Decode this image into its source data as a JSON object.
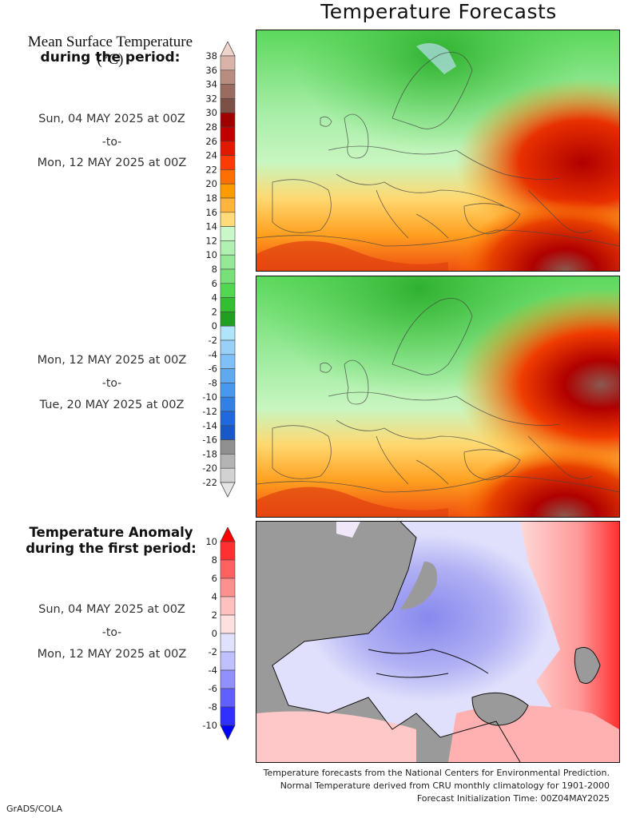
{
  "page": {
    "title": "Temperature Forecasts",
    "footer_lines": [
      "Temperature forecasts from the National Centers for Environmental Prediction.",
      "Normal Temperature derived from CRU monthly climatology for 1901-2000",
      "Forecast Initialization Time: 00Z04MAY2025"
    ],
    "credit": "GrADS/COLA"
  },
  "labels": {
    "mean_title_line1": "Mean Surface Temperature (°C)",
    "mean_title_line2": "during the period:",
    "period1_start": "Sun, 04 MAY 2025 at 00Z",
    "period1_sep": "-to-",
    "period1_end": "Mon, 12 MAY 2025 at 00Z",
    "period2_start": "Mon, 12 MAY 2025 at 00Z",
    "period2_sep": "-to-",
    "period2_end": "Tue, 20 MAY 2025 at 00Z",
    "anom_title_line1": "Temperature Anomaly",
    "anom_title_line2": "during the first period:",
    "period3_start": "Sun, 04 MAY 2025 at 00Z",
    "period3_sep": "-to-",
    "period3_end": "Mon, 12 MAY 2025 at 00Z"
  },
  "chart_data": [
    {
      "type": "heatmap",
      "title": "Mean Surface Temperature (°C), Sun 04 MAY 2025 00Z to Mon 12 MAY 2025 00Z",
      "region": "Europe",
      "summary": "Cool greens (2-14°C) over Scandinavia, NW Russia and N Atlantic; 14-22°C over Iberia, Mediterranean; 22-30°C+ over N Africa, Middle East, Kazakhstan steppe"
    },
    {
      "type": "heatmap",
      "title": "Mean Surface Temperature (°C), Mon 12 MAY 2025 00Z to Tue 20 MAY 2025 00Z",
      "region": "Europe",
      "summary": "Similar pattern; warmer band (24-34°C) over Kazakhstan and Middle East"
    },
    {
      "type": "heatmap",
      "title": "Temperature Anomaly (°C), Sun 04 MAY 2025 00Z to Mon 12 MAY 2025 00Z",
      "region": "Europe",
      "summary": "Negative anomalies (-2 to -6) over central/eastern Europe and western Russia; positive anomalies (+2 to +10) over Kazakhstan, Turkey, N Africa"
    }
  ],
  "colorbars": {
    "temperature": {
      "ticks": [
        "38",
        "36",
        "34",
        "32",
        "30",
        "28",
        "26",
        "24",
        "22",
        "20",
        "18",
        "16",
        "14",
        "12",
        "10",
        "8",
        "6",
        "4",
        "2",
        "0",
        "-2",
        "-4",
        "-6",
        "-8",
        "-10",
        "-12",
        "-14",
        "-16",
        "-18",
        "-20",
        "-22"
      ],
      "colors": [
        "#f0d3cc",
        "#d9b3a8",
        "#b98c80",
        "#9a6c60",
        "#7c5044",
        "#a00000",
        "#c00000",
        "#e01a00",
        "#fa3c00",
        "#ff6e00",
        "#ff9a00",
        "#ffb43c",
        "#ffdc78",
        "#c8f8c8",
        "#b0f0b0",
        "#96e896",
        "#78e078",
        "#50d850",
        "#30c030",
        "#20a020",
        "#b0e4f8",
        "#98d0f8",
        "#80c0f8",
        "#60a8f0",
        "#4898f0",
        "#3080e8",
        "#2068e0",
        "#1858c8",
        "#909090",
        "#b4b4b4",
        "#d2d2d2",
        "#e6e6e6"
      ]
    },
    "anomaly": {
      "ticks": [
        "10",
        "8",
        "6",
        "4",
        "2",
        "0",
        "-2",
        "-4",
        "-6",
        "-8",
        "-10"
      ],
      "colors": [
        "#ff0000",
        "#ff3030",
        "#ff6060",
        "#ff9090",
        "#ffc0c0",
        "#ffe0e0",
        "#e0e0ff",
        "#c0c0ff",
        "#9090ff",
        "#6060ff",
        "#3030ff",
        "#0000ff"
      ]
    }
  }
}
